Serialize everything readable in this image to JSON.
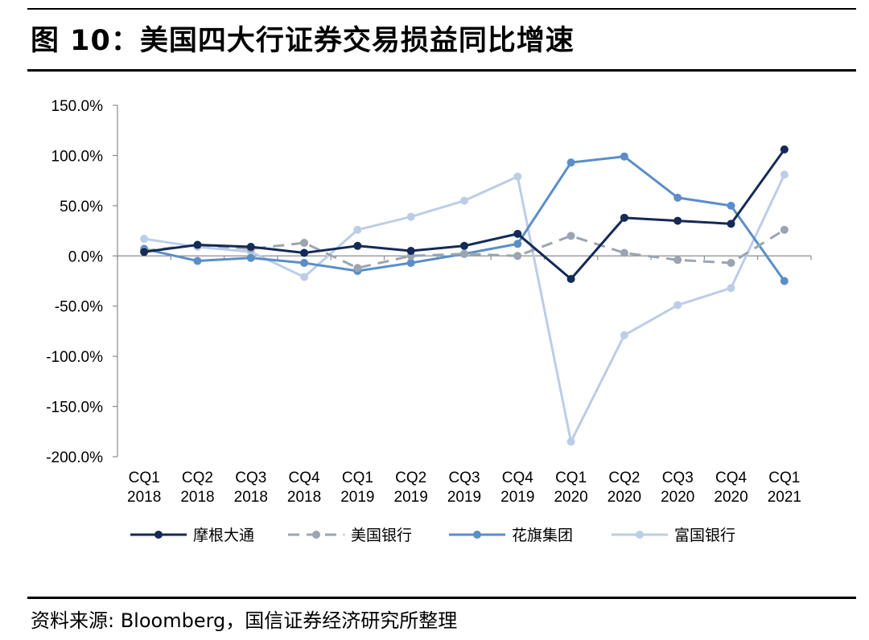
{
  "title": "图 10：美国四大行证券交易损益同比增速",
  "source": "资料来源: Bloomberg，国信证券经济研究所整理",
  "chart_data": {
    "type": "line",
    "title": "",
    "xlabel": "",
    "ylabel": "",
    "ylim": [
      -200,
      150
    ],
    "yticks": [
      150,
      100,
      50,
      0,
      -50,
      -100,
      -150,
      -200
    ],
    "ytick_labels": [
      "150.0%",
      "100.0%",
      "50.0%",
      "0.0%",
      "-50.0%",
      "-100.0%",
      "-150.0%",
      "-200.0%"
    ],
    "categories": [
      {
        "q": "CQ1",
        "y": "2018"
      },
      {
        "q": "CQ2",
        "y": "2018"
      },
      {
        "q": "CQ3",
        "y": "2018"
      },
      {
        "q": "CQ4",
        "y": "2018"
      },
      {
        "q": "CQ1",
        "y": "2019"
      },
      {
        "q": "CQ2",
        "y": "2019"
      },
      {
        "q": "CQ3",
        "y": "2019"
      },
      {
        "q": "CQ4",
        "y": "2019"
      },
      {
        "q": "CQ1",
        "y": "2020"
      },
      {
        "q": "CQ2",
        "y": "2020"
      },
      {
        "q": "CQ3",
        "y": "2020"
      },
      {
        "q": "CQ4",
        "y": "2020"
      },
      {
        "q": "CQ1",
        "y": "2021"
      }
    ],
    "grid": false,
    "legend_position": "bottom",
    "series": [
      {
        "name": "摩根大通",
        "color": "#142a57",
        "dashed": false,
        "values": [
          4,
          11,
          9,
          3,
          10,
          5,
          10,
          22,
          -23,
          38,
          35,
          32,
          106
        ]
      },
      {
        "name": "美国银行",
        "color": "#9aa5b1",
        "dashed": true,
        "values": [
          5,
          11,
          7,
          13,
          -12,
          0,
          2,
          0,
          20,
          3,
          -4,
          -7,
          26
        ]
      },
      {
        "name": "花旗集团",
        "color": "#5b8ec9",
        "dashed": false,
        "values": [
          7,
          -5,
          -2,
          -7,
          -15,
          -7,
          2,
          12,
          93,
          99,
          58,
          50,
          -25
        ]
      },
      {
        "name": "富国银行",
        "color": "#bccde8",
        "dashed": false,
        "values": [
          17,
          9,
          4,
          -21,
          26,
          39,
          55,
          79,
          -185,
          -79,
          -49,
          -32,
          81
        ]
      }
    ]
  }
}
